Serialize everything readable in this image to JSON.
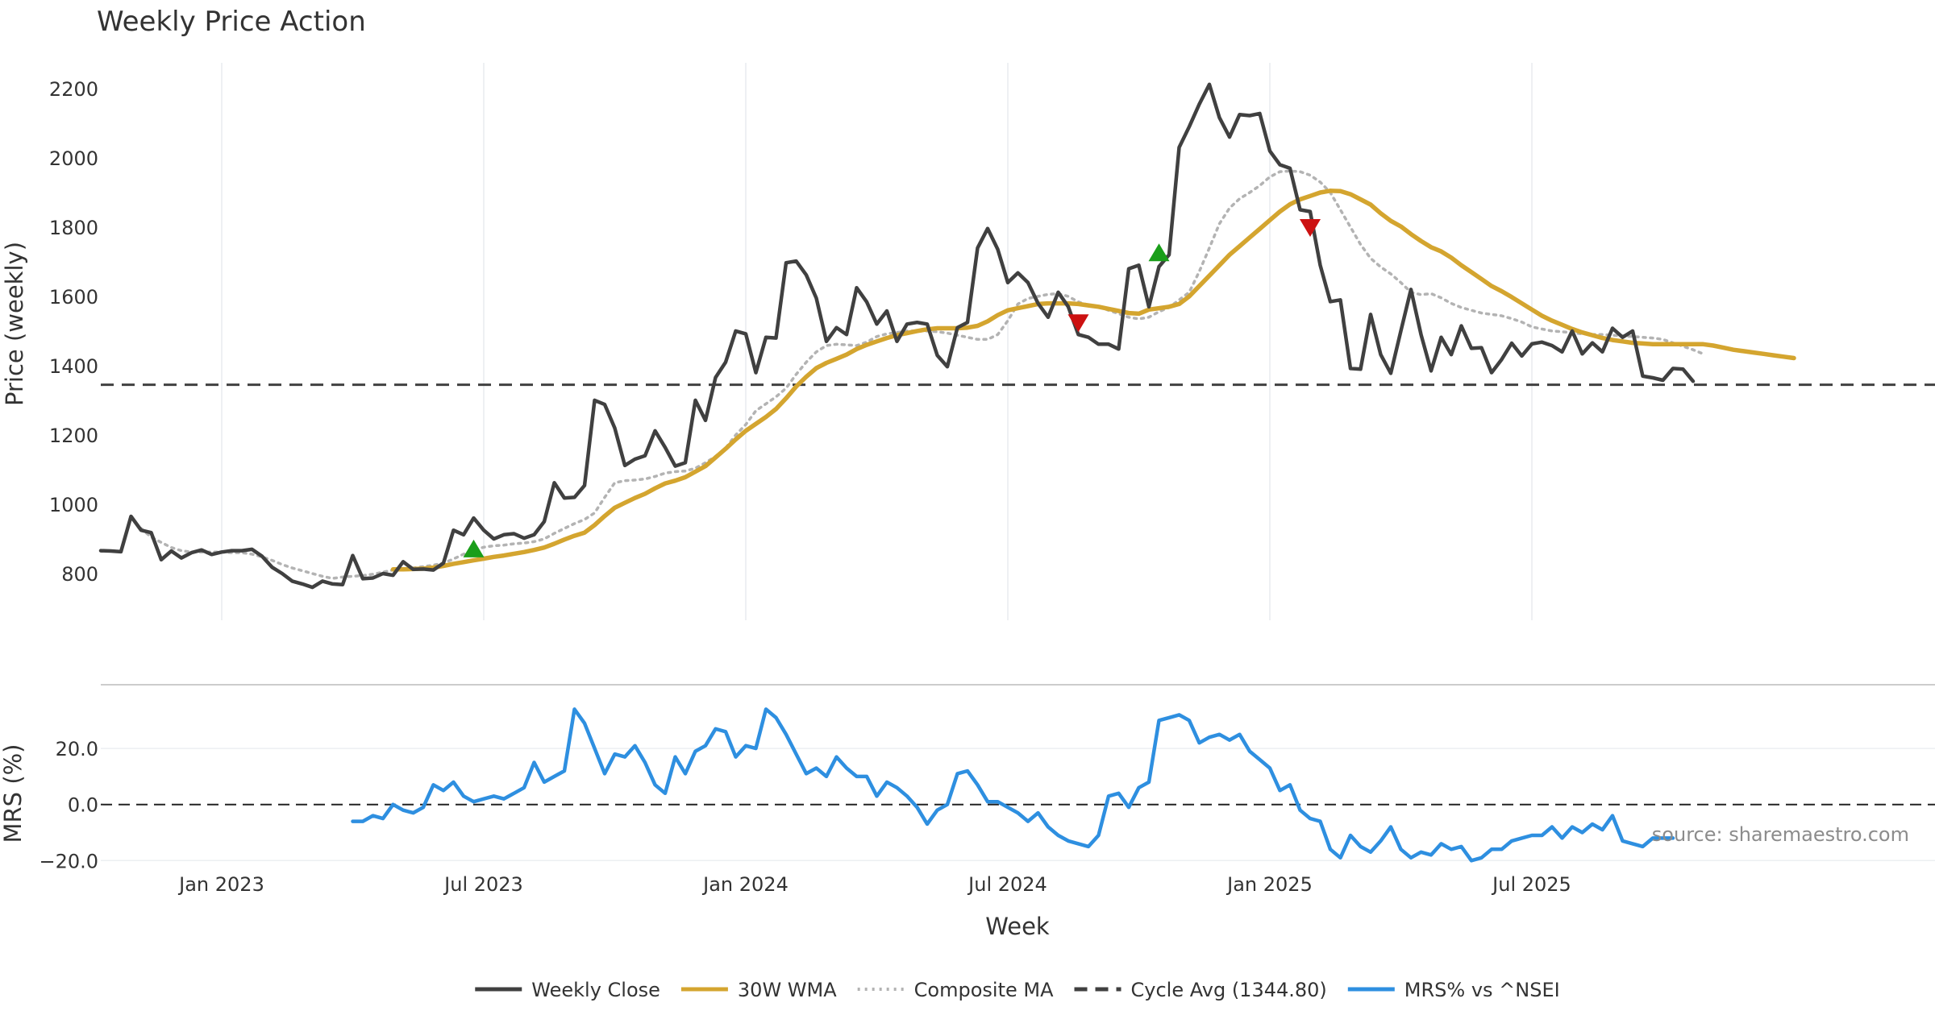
{
  "chart_data": {
    "type": "line",
    "title": "Weekly Price Action",
    "xlabel": "Week",
    "x_tick_labels": [
      "Jan 2023",
      "Jul 2023",
      "Jan 2024",
      "Jul 2024",
      "Jan 2025",
      "Jul 2025"
    ],
    "x_tick_weeks": [
      12,
      38,
      64,
      90,
      116,
      142
    ],
    "week_count": 149,
    "source": "source: sharemaestro.com",
    "price_panel": {
      "ylabel": "Price (weekly)",
      "ylim": [
        665,
        2265
      ],
      "yticks": [
        800,
        1000,
        1200,
        1400,
        1600,
        1800,
        2000,
        2200
      ],
      "series": [
        {
          "name": "Weekly Close",
          "color": "#404040",
          "style": "solid",
          "start_week": 0,
          "values": [
            866,
            865,
            863,
            965,
            925,
            918,
            840,
            865,
            845,
            860,
            868,
            855,
            862,
            866,
            866,
            870,
            850,
            818,
            800,
            778,
            770,
            760,
            778,
            770,
            768,
            852,
            785,
            787,
            800,
            795,
            834,
            812,
            813,
            810,
            830,
            925,
            912,
            960,
            925,
            900,
            912,
            915,
            902,
            912,
            950,
            1062,
            1018,
            1020,
            1054,
            1300,
            1288,
            1220,
            1112,
            1130,
            1140,
            1212,
            1164,
            1110,
            1120,
            1300,
            1242,
            1366,
            1410,
            1500,
            1492,
            1380,
            1482,
            1480,
            1697,
            1702,
            1662,
            1595,
            1470,
            1510,
            1490,
            1625,
            1584,
            1520,
            1558,
            1470,
            1520,
            1525,
            1520,
            1430,
            1397,
            1510,
            1525,
            1740,
            1796,
            1736,
            1640,
            1668,
            1640,
            1580,
            1540,
            1612,
            1570,
            1490,
            1482,
            1462,
            1462,
            1448,
            1680,
            1690,
            1570,
            1686,
            1720,
            2030,
            2090,
            2155,
            2212,
            2116,
            2060,
            2125,
            2122,
            2128,
            2020,
            1980,
            1970,
            1850,
            1845,
            1690,
            1585,
            1590,
            1392,
            1390,
            1548,
            1432,
            1378,
            1500,
            1620,
            1490,
            1385,
            1482,
            1432,
            1515,
            1450,
            1452,
            1380,
            1418,
            1465,
            1428,
            1463,
            1468,
            1458,
            1440,
            1500,
            1434,
            1466,
            1440,
            1508,
            1482,
            1500,
            1370,
            1365,
            1358,
            1392,
            1390,
            1355
          ]
        },
        {
          "name": "30W WMA",
          "color": "#D4A52F",
          "style": "solid",
          "start_week": 29,
          "values": [
            812,
            812,
            813,
            814,
            817,
            822,
            828,
            833,
            838,
            843,
            848,
            852,
            857,
            862,
            868,
            875,
            886,
            898,
            909,
            918,
            940,
            966,
            990,
            1004,
            1018,
            1030,
            1046,
            1060,
            1068,
            1078,
            1094,
            1110,
            1135,
            1160,
            1187,
            1212,
            1232,
            1252,
            1275,
            1306,
            1340,
            1368,
            1393,
            1408,
            1420,
            1432,
            1448,
            1460,
            1470,
            1480,
            1488,
            1494,
            1500,
            1505,
            1508,
            1508,
            1508,
            1510,
            1515,
            1528,
            1546,
            1560,
            1566,
            1572,
            1578,
            1580,
            1580,
            1580,
            1578,
            1574,
            1570,
            1564,
            1558,
            1552,
            1550,
            1562,
            1566,
            1570,
            1578,
            1600,
            1630,
            1660,
            1690,
            1720,
            1745,
            1770,
            1795,
            1820,
            1845,
            1866,
            1880,
            1890,
            1900,
            1905,
            1904,
            1895,
            1880,
            1865,
            1840,
            1818,
            1802,
            1780,
            1760,
            1742,
            1730,
            1712,
            1690,
            1670,
            1650,
            1630,
            1615,
            1598,
            1580,
            1562,
            1544,
            1530,
            1518,
            1506,
            1496,
            1488,
            1480,
            1474,
            1470,
            1466,
            1464,
            1462,
            1462,
            1462,
            1462,
            1462,
            1462,
            1458,
            1452,
            1446,
            1442,
            1438,
            1434,
            1430,
            1426,
            1422
          ]
        },
        {
          "name": "Composite MA",
          "color": "#b3b3b3",
          "style": "dotted",
          "start_week": 4,
          "values": [
            930,
            905,
            890,
            875,
            866,
            862,
            862,
            862,
            862,
            860,
            860,
            856,
            848,
            838,
            826,
            816,
            808,
            800,
            792,
            786,
            790,
            792,
            794,
            798,
            804,
            810,
            812,
            816,
            820,
            824,
            830,
            842,
            856,
            868,
            876,
            880,
            882,
            886,
            888,
            892,
            900,
            916,
            930,
            944,
            956,
            975,
            1020,
            1062,
            1068,
            1070,
            1073,
            1080,
            1090,
            1094,
            1096,
            1104,
            1120,
            1138,
            1162,
            1200,
            1230,
            1270,
            1290,
            1310,
            1335,
            1375,
            1410,
            1440,
            1458,
            1462,
            1460,
            1458,
            1468,
            1484,
            1492,
            1496,
            1500,
            1500,
            1500,
            1498,
            1494,
            1488,
            1482,
            1476,
            1476,
            1490,
            1530,
            1578,
            1594,
            1600,
            1606,
            1608,
            1600,
            1584,
            1575,
            1570,
            1560,
            1550,
            1540,
            1535,
            1540,
            1556,
            1568,
            1590,
            1612,
            1672,
            1740,
            1810,
            1855,
            1882,
            1900,
            1920,
            1945,
            1960,
            1962,
            1960,
            1950,
            1930,
            1900,
            1850,
            1800,
            1750,
            1710,
            1685,
            1665,
            1640,
            1612,
            1605,
            1608,
            1596,
            1580,
            1568,
            1560,
            1552,
            1548,
            1544,
            1536,
            1526,
            1512,
            1506,
            1500,
            1498,
            1495,
            1492,
            1490,
            1490,
            1488,
            1486,
            1484,
            1482,
            1480,
            1476,
            1466,
            1456,
            1446,
            1434
          ]
        },
        {
          "name": "Cycle Avg (1344.80)",
          "color": "#404040",
          "style": "dashed",
          "value": 1344.8
        }
      ],
      "markers": [
        {
          "type": "buy",
          "week": 37,
          "value": 870,
          "color": "#1a9e1a"
        },
        {
          "type": "sell",
          "week": 97,
          "value": 1525,
          "color": "#cc1111"
        },
        {
          "type": "buy",
          "week": 105,
          "value": 1725,
          "color": "#1a9e1a"
        },
        {
          "type": "sell",
          "week": 120,
          "value": 1800,
          "color": "#cc1111"
        }
      ]
    },
    "mrs_panel": {
      "ylabel": "MRS (%)",
      "ylim": [
        -20.5,
        37
      ],
      "yticks": [
        20.0,
        0.0,
        -20.0
      ],
      "ytick_labels": [
        "20.0",
        "0.0",
        "−20.0"
      ],
      "zero_line": true,
      "series": [
        {
          "name": "MRS% vs ^NSEI",
          "color": "#2e8fe0",
          "style": "solid",
          "start_week": 25,
          "values": [
            -6,
            -6,
            -4,
            -5,
            0,
            -2,
            -3,
            -1,
            7,
            5,
            8,
            3,
            1,
            2,
            3,
            2,
            4,
            6,
            15,
            8,
            10,
            12,
            34,
            29,
            20,
            11,
            18,
            17,
            21,
            15,
            7,
            4,
            17,
            11,
            19,
            21,
            27,
            26,
            17,
            21,
            20,
            34,
            31,
            25,
            18,
            11,
            13,
            10,
            17,
            13,
            10,
            10,
            3,
            8,
            6,
            3,
            -1,
            -7,
            -2,
            0,
            11,
            12,
            7,
            1,
            1,
            -1,
            -3,
            -6,
            -3,
            -8,
            -11,
            -13,
            -14,
            -15,
            -11,
            3,
            4,
            -1,
            6,
            8,
            30,
            31,
            32,
            30,
            22,
            24,
            25,
            23,
            25,
            19,
            16,
            13,
            5,
            7,
            -2,
            -5,
            -6,
            -16,
            -19,
            -11,
            -15,
            -17,
            -13,
            -8,
            -16,
            -19,
            -17,
            -18,
            -14,
            -16,
            -15,
            -20,
            -19,
            -16,
            -16,
            -13,
            -12,
            -11,
            -11,
            -8,
            -12,
            -8,
            -10,
            -7,
            -9,
            -4,
            -13,
            -14,
            -15,
            -12,
            -12,
            -12
          ]
        }
      ]
    },
    "legend": [
      {
        "label": "Weekly Close",
        "color": "#404040",
        "style": "solid"
      },
      {
        "label": "30W WMA",
        "color": "#D4A52F",
        "style": "solid"
      },
      {
        "label": "Composite MA",
        "color": "#b3b3b3",
        "style": "dotted"
      },
      {
        "label": "Cycle Avg (1344.80)",
        "color": "#404040",
        "style": "dashed"
      },
      {
        "label": "MRS% vs ^NSEI",
        "color": "#2e8fe0",
        "style": "solid"
      }
    ]
  }
}
